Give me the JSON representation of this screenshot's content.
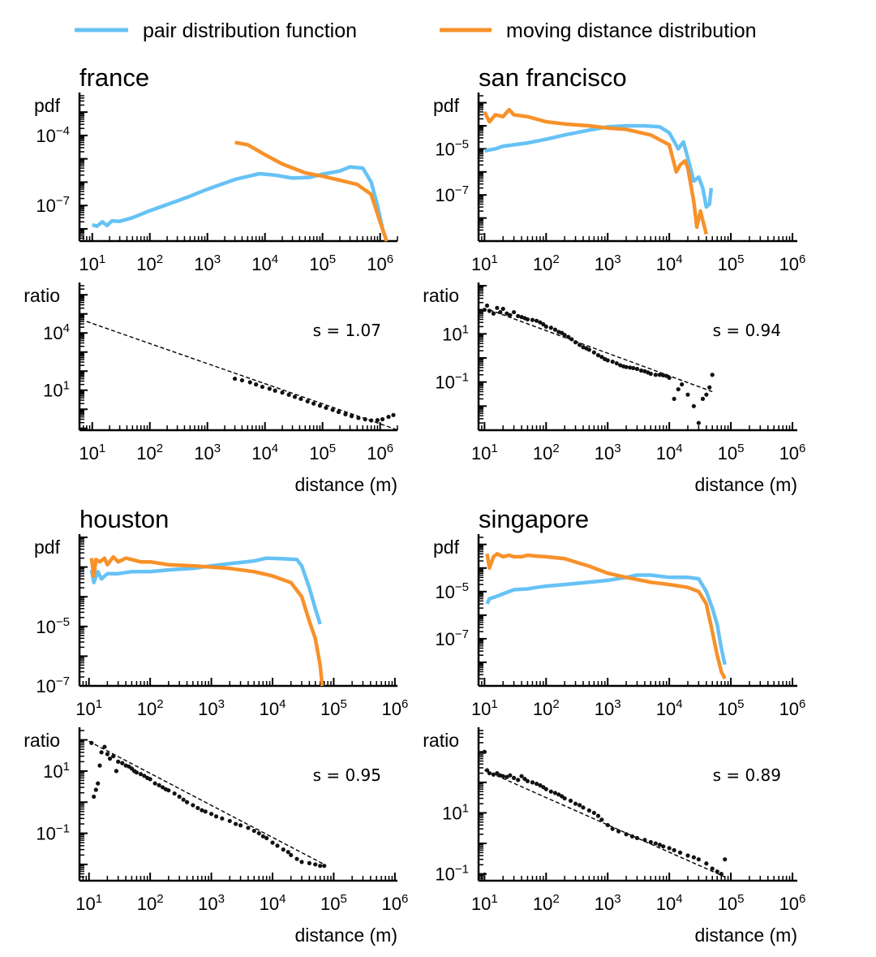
{
  "legend": [
    {
      "name": "pair distribution function",
      "color": "#66c2f5"
    },
    {
      "name": "moving distance distribution",
      "color": "#f7912a"
    }
  ],
  "chart_data": [
    {
      "type": "line",
      "title": "france",
      "ylabel": "pdf",
      "yscale": "log",
      "xscale": "log",
      "xlim": [
        6,
        2000000
      ],
      "ylim": [
        3e-09,
        0.005
      ],
      "x_ticks": [
        "10^1",
        "10^2",
        "10^3",
        "10^4",
        "10^5",
        "10^6"
      ],
      "y_ticks": [
        "10^-4",
        "10^-7"
      ],
      "series": [
        {
          "name": "pair distribution function",
          "x": [
            10,
            12,
            15,
            18,
            22,
            30,
            50,
            100,
            200,
            500,
            1000,
            3000,
            8000,
            15000,
            30000,
            60000,
            100000,
            200000,
            300000,
            500000,
            700000,
            900000,
            1100000,
            1300000
          ],
          "y": [
            1.5e-08,
            1.3e-08,
            2e-08,
            1.4e-08,
            2.2e-08,
            2.1e-08,
            3e-08,
            6e-08,
            1.1e-07,
            2.5e-07,
            5e-07,
            1.3e-06,
            2.3e-06,
            2e-06,
            1.5e-06,
            1.6e-06,
            2.2e-06,
            3e-06,
            4.5e-06,
            4e-06,
            1e-06,
            1e-07,
            1e-08,
            3e-09
          ]
        },
        {
          "name": "moving distance distribution",
          "x": [
            3000,
            5000,
            10000,
            20000,
            50000,
            100000,
            200000,
            400000,
            700000,
            1000000,
            1300000
          ],
          "y": [
            5e-05,
            4e-05,
            1.5e-05,
            6e-06,
            2.5e-06,
            1.8e-06,
            1.2e-06,
            8e-07,
            3e-07,
            2e-08,
            3e-09
          ]
        }
      ]
    },
    {
      "type": "scatter",
      "ylabel": "ratio",
      "xlabel": "distance (m)",
      "yscale": "log",
      "xscale": "log",
      "xlim": [
        6,
        2000000
      ],
      "ylim": [
        0.08,
        3000000
      ],
      "x_ticks": [
        "10^1",
        "10^2",
        "10^3",
        "10^4",
        "10^5",
        "10^6"
      ],
      "y_ticks": [
        "10^4",
        "10^1"
      ],
      "fit": {
        "s": 1.07,
        "label": "s = 1.07",
        "x": [
          8,
          2000000
        ],
        "y": [
          40000,
          0.083
        ]
      },
      "points": {
        "x": [
          3000,
          4000,
          5500,
          7000,
          9000,
          12000,
          15000,
          20000,
          26000,
          33000,
          42000,
          55000,
          70000,
          90000,
          115000,
          150000,
          190000,
          250000,
          320000,
          420000,
          550000,
          700000,
          900000,
          1100000,
          1400000,
          1700000
        ],
        "y": [
          40,
          33,
          26,
          20,
          15,
          12,
          9.5,
          7.5,
          5.8,
          4.5,
          3.5,
          2.6,
          2.0,
          1.55,
          1.2,
          0.93,
          0.72,
          0.55,
          0.44,
          0.35,
          0.3,
          0.26,
          0.27,
          0.3,
          0.4,
          0.5
        ]
      }
    },
    {
      "type": "line",
      "title": "san francisco",
      "ylabel": "pdf",
      "yscale": "log",
      "xscale": "log",
      "xlim": [
        8,
        1200000
      ],
      "ylim": [
        1e-09,
        0.002
      ],
      "x_ticks": [
        "10^1",
        "10^2",
        "10^3",
        "10^4",
        "10^5",
        "10^6"
      ],
      "y_ticks": [
        "10^-5",
        "10^-7"
      ],
      "series": [
        {
          "name": "pair distribution function",
          "x": [
            10,
            12,
            15,
            20,
            30,
            50,
            100,
            200,
            500,
            1000,
            2000,
            4000,
            7000,
            10000,
            14000,
            17000,
            20000,
            25000,
            30000,
            35000,
            40000,
            45000,
            48000
          ],
          "y": [
            8e-06,
            9e-06,
            1e-05,
            1.3e-05,
            1.5e-05,
            1.8e-05,
            2.6e-05,
            4e-05,
            6.5e-05,
            9e-05,
            0.0001,
            0.0001,
            9e-05,
            5e-05,
            1e-05,
            2e-05,
            4e-06,
            4e-07,
            6e-07,
            2e-07,
            3e-08,
            4e-08,
            2e-07
          ]
        },
        {
          "name": "moving distance distribution",
          "x": [
            10,
            12,
            15,
            20,
            25,
            30,
            50,
            100,
            200,
            500,
            1000,
            2000,
            5000,
            10000,
            13000,
            15000,
            18000,
            20000,
            25000,
            28000,
            32000,
            40000
          ],
          "y": [
            0.0004,
            0.00015,
            0.0003,
            0.00025,
            0.0005,
            0.0003,
            0.00025,
            0.00015,
            0.00012,
            0.0001,
            8e-05,
            7e-05,
            4e-05,
            1.5e-05,
            1e-06,
            2e-06,
            3e-06,
            1.5e-06,
            5e-08,
            4e-09,
            2e-08,
            2e-09
          ]
        }
      ]
    },
    {
      "type": "scatter",
      "ylabel": "ratio",
      "xlabel": "distance (m)",
      "yscale": "log",
      "xscale": "log",
      "xlim": [
        8,
        1200000
      ],
      "ylim": [
        0.001,
        1000
      ],
      "x_ticks": [
        "10^1",
        "10^2",
        "10^3",
        "10^4",
        "10^5",
        "10^6"
      ],
      "y_ticks": [
        "10^1",
        "10^-1"
      ],
      "fit": {
        "s": 0.94,
        "label": "s = 0.94",
        "x": [
          12,
          50000
        ],
        "y": [
          100,
          0.04
        ]
      },
      "points": {
        "x": [
          10,
          11,
          12,
          14,
          16,
          18,
          20,
          23,
          26,
          30,
          35,
          40,
          45,
          50,
          60,
          70,
          80,
          90,
          100,
          120,
          140,
          160,
          180,
          200,
          230,
          260,
          300,
          350,
          400,
          450,
          500,
          600,
          700,
          800,
          900,
          1000,
          1200,
          1400,
          1600,
          1800,
          2000,
          2300,
          2600,
          3000,
          3500,
          4000,
          4500,
          5000,
          6000,
          7000,
          8000,
          9000,
          10000,
          12000,
          14000,
          16000,
          20000,
          25000,
          30000,
          35000,
          40000,
          45000,
          50000
        ],
        "y": [
          100,
          150,
          90,
          70,
          120,
          80,
          110,
          70,
          60,
          80,
          55,
          50,
          45,
          40,
          38,
          35,
          30,
          25,
          20,
          18,
          15,
          12,
          11,
          9,
          7.5,
          6,
          4.5,
          3.5,
          2.8,
          2.5,
          2.2,
          1.7,
          1.3,
          1.1,
          0.9,
          0.8,
          0.7,
          0.6,
          0.5,
          0.45,
          0.42,
          0.4,
          0.38,
          0.35,
          0.3,
          0.28,
          0.25,
          0.22,
          0.2,
          0.2,
          0.19,
          0.18,
          0.15,
          0.02,
          0.05,
          0.08,
          0.03,
          0.01,
          0.002,
          0.02,
          0.03,
          0.06,
          0.2
        ]
      }
    },
    {
      "type": "line",
      "title": "houston",
      "ylabel": "pdf",
      "yscale": "log",
      "xscale": "log",
      "xlim": [
        7,
        1100000
      ],
      "ylim": [
        1e-07,
        0.01
      ],
      "x_ticks": [
        "10^1",
        "10^2",
        "10^3",
        "10^4",
        "10^5",
        "10^6"
      ],
      "y_ticks": [
        "10^-5",
        "10^-7"
      ],
      "series": [
        {
          "name": "pair distribution function",
          "x": [
            11,
            12,
            14,
            16,
            20,
            30,
            50,
            100,
            200,
            500,
            1000,
            2000,
            5000,
            8000,
            15000,
            25000,
            30000,
            40000,
            50000,
            60000
          ],
          "y": [
            0.0008,
            0.0003,
            0.0007,
            0.0004,
            0.0006,
            0.0006,
            0.0007,
            0.0007,
            0.0008,
            0.0009,
            0.0011,
            0.0013,
            0.0016,
            0.002,
            0.0019,
            0.0018,
            0.0011,
            0.0002,
            4e-05,
            1.2e-05
          ]
        },
        {
          "name": "moving distance distribution",
          "x": [
            11,
            12,
            13,
            15,
            18,
            20,
            25,
            30,
            40,
            50,
            70,
            100,
            200,
            500,
            1000,
            2000,
            5000,
            10000,
            20000,
            30000,
            40000,
            50000,
            60000,
            65000
          ],
          "y": [
            0.002,
            0.0005,
            0.0018,
            0.0015,
            0.002,
            0.0012,
            0.0022,
            0.0015,
            0.002,
            0.0018,
            0.0015,
            0.0015,
            0.0012,
            0.0011,
            0.001,
            0.0009,
            0.0007,
            0.0005,
            0.0003,
            0.0001,
            1.5e-05,
            4e-06,
            5e-07,
            1e-07
          ]
        }
      ]
    },
    {
      "type": "scatter",
      "ylabel": "ratio",
      "xlabel": "distance (m)",
      "yscale": "log",
      "xscale": "log",
      "xlim": [
        7,
        1100000
      ],
      "ylim": [
        0.003,
        200
      ],
      "x_ticks": [
        "10^1",
        "10^2",
        "10^3",
        "10^4",
        "10^5",
        "10^6"
      ],
      "y_ticks": [
        "10^1",
        "10^-1"
      ],
      "fit": {
        "s": 0.95,
        "label": "s = 0.95",
        "x": [
          10,
          70000
        ],
        "y": [
          90,
          0.01
        ]
      },
      "points": {
        "x": [
          11,
          12,
          13,
          14,
          15,
          16,
          18,
          20,
          22,
          25,
          28,
          30,
          35,
          40,
          45,
          50,
          55,
          60,
          70,
          80,
          90,
          100,
          120,
          140,
          160,
          180,
          200,
          250,
          300,
          350,
          400,
          500,
          600,
          700,
          800,
          1000,
          1200,
          1500,
          2000,
          2500,
          3000,
          4000,
          5000,
          6000,
          7000,
          8000,
          10000,
          12000,
          15000,
          18000,
          20000,
          25000,
          30000,
          40000,
          50000,
          60000,
          70000
        ],
        "y": [
          80,
          1.5,
          2.5,
          4,
          15,
          40,
          60,
          35,
          25,
          30,
          10,
          20,
          18,
          15,
          14,
          12,
          10,
          9,
          8,
          7,
          6,
          5.5,
          4,
          3.5,
          3,
          2.6,
          2.4,
          1.9,
          1.5,
          1.2,
          1.0,
          0.8,
          0.65,
          0.55,
          0.5,
          0.42,
          0.35,
          0.3,
          0.25,
          0.2,
          0.18,
          0.15,
          0.12,
          0.1,
          0.08,
          0.07,
          0.05,
          0.04,
          0.03,
          0.025,
          0.02,
          0.015,
          0.012,
          0.011,
          0.01,
          0.009,
          0.009
        ]
      }
    },
    {
      "type": "line",
      "title": "singapore",
      "ylabel": "pdf",
      "yscale": "log",
      "xscale": "log",
      "xlim": [
        8,
        1200000
      ],
      "ylim": [
        1e-09,
        0.002
      ],
      "x_ticks": [
        "10^1",
        "10^2",
        "10^3",
        "10^4",
        "10^5",
        "10^6"
      ],
      "y_ticks": [
        "10^-5",
        "10^-7"
      ],
      "series": [
        {
          "name": "pair distribution function",
          "x": [
            11,
            12,
            15,
            20,
            30,
            50,
            70,
            100,
            200,
            500,
            1000,
            2000,
            3000,
            5000,
            10000,
            20000,
            30000,
            40000,
            50000,
            60000,
            70000,
            80000
          ],
          "y": [
            3e-06,
            5e-06,
            6e-06,
            8e-06,
            1.2e-05,
            1.3e-05,
            1.5e-05,
            1.7e-05,
            2e-05,
            2.5e-05,
            3e-05,
            4e-05,
            5e-05,
            5e-05,
            4e-05,
            4e-05,
            3.5e-05,
            1e-05,
            2e-06,
            4e-07,
            4e-08,
            8e-09
          ]
        },
        {
          "name": "moving distance distribution",
          "x": [
            11,
            12,
            14,
            16,
            20,
            25,
            30,
            40,
            50,
            70,
            100,
            200,
            300,
            500,
            1000,
            2000,
            5000,
            10000,
            20000,
            30000,
            40000,
            50000,
            60000,
            70000,
            80000
          ],
          "y": [
            0.0004,
            0.0001,
            0.0003,
            0.0004,
            0.0003,
            0.00035,
            0.0003,
            0.0003,
            0.00035,
            0.00032,
            0.0003,
            0.00025,
            0.00018,
            0.00012,
            6e-05,
            4e-05,
            2.5e-05,
            2e-05,
            1.5e-05,
            1e-05,
            3e-06,
            2e-07,
            2e-08,
            4e-09,
            2e-09
          ]
        }
      ]
    },
    {
      "type": "scatter",
      "ylabel": "ratio",
      "xlabel": "distance (m)",
      "yscale": "log",
      "xscale": "log",
      "xlim": [
        8,
        1200000
      ],
      "ylim": [
        0.06,
        5000
      ],
      "x_ticks": [
        "10^1",
        "10^2",
        "10^3",
        "10^4",
        "10^5",
        "10^6"
      ],
      "y_ticks": [
        "10^1",
        "10^-1"
      ],
      "fit": {
        "s": 0.89,
        "label": "s = 0.89",
        "x": [
          10,
          80000
        ],
        "y": [
          250,
          0.08
        ]
      },
      "points": {
        "x": [
          10,
          11,
          12,
          14,
          16,
          18,
          20,
          23,
          26,
          30,
          35,
          40,
          45,
          50,
          60,
          70,
          80,
          90,
          100,
          120,
          140,
          160,
          180,
          200,
          250,
          300,
          350,
          400,
          500,
          600,
          700,
          800,
          1000,
          1200,
          1500,
          2000,
          2500,
          3000,
          4000,
          5000,
          6000,
          7000,
          8000,
          10000,
          12000,
          15000,
          20000,
          25000,
          30000,
          40000,
          50000,
          60000,
          70000,
          80000
        ],
        "y": [
          1000,
          250,
          200,
          180,
          200,
          170,
          160,
          150,
          170,
          140,
          120,
          160,
          130,
          110,
          100,
          90,
          80,
          70,
          60,
          50,
          45,
          40,
          35,
          30,
          25,
          20,
          18,
          15,
          12,
          10,
          8,
          6,
          4,
          3,
          2.5,
          2,
          1.7,
          1.5,
          1.3,
          1.1,
          1.0,
          0.9,
          0.8,
          0.7,
          0.6,
          0.5,
          0.4,
          0.35,
          0.3,
          0.22,
          0.15,
          0.12,
          0.1,
          0.3
        ]
      }
    }
  ]
}
